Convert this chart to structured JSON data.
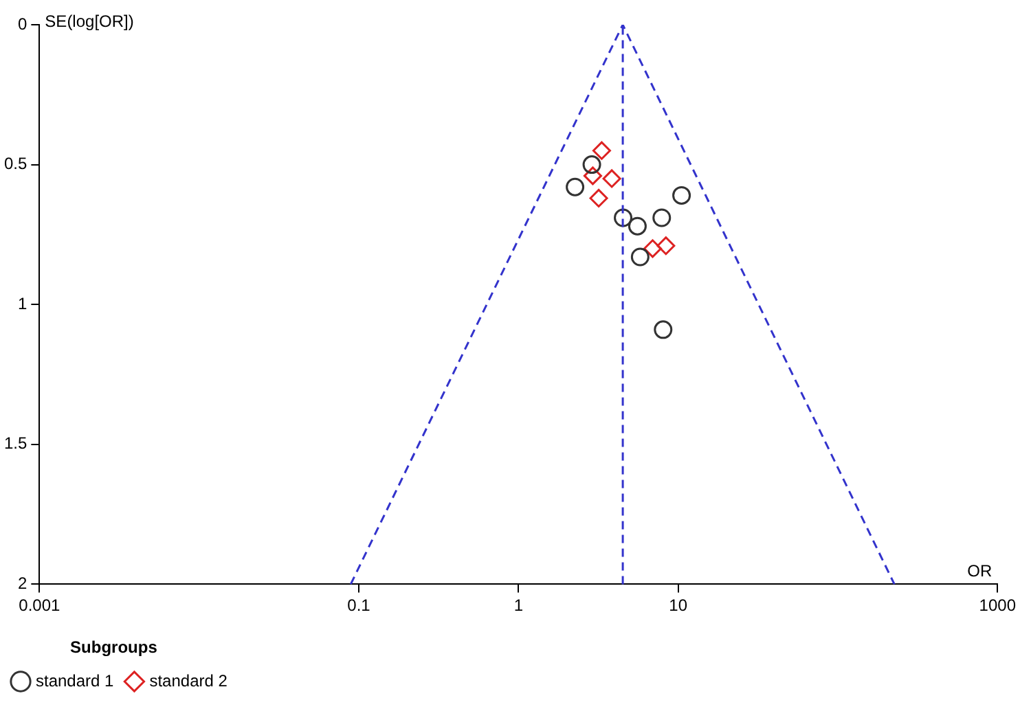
{
  "chart_data": {
    "type": "scatter",
    "xlabel": "OR",
    "ylabel": "SE(log[OR])",
    "legend_title": "Subgroups",
    "log": "x",
    "grid": false,
    "legend": "bottom",
    "xlim": [
      0.001,
      1000
    ],
    "xticks": [
      0.001,
      0.1,
      1,
      10,
      1000
    ],
    "ylim": [
      2,
      0
    ],
    "yticks": [
      0,
      0.5,
      1,
      1.5,
      2
    ],
    "series": [
      {
        "name": "standard 1",
        "color": "#333333",
        "marker": "circle",
        "x": [
          2.88,
          2.26,
          10.5,
          4.52,
          7.89,
          5.56,
          5.78,
          8.05
        ],
        "values": [
          0.5,
          0.58,
          0.61,
          0.69,
          0.69,
          0.72,
          0.83,
          1.09
        ]
      },
      {
        "name": "standard 2",
        "color": "#dd2222",
        "marker": "diamond",
        "x": [
          3.32,
          2.92,
          3.84,
          3.18,
          6.92,
          8.38
        ],
        "values": [
          0.45,
          0.54,
          0.55,
          0.62,
          0.8,
          0.79
        ]
      },
      {
        "type": "line",
        "color": "#3333cc",
        "line_style": "dashed",
        "marker": "none",
        "x": [
          0.089,
          4.5,
          226
        ],
        "values": [
          2,
          0,
          2
        ]
      }
    ],
    "ref_lines": [
      {
        "axis": "x",
        "value": 4.5,
        "color": "#3333cc",
        "line_style": "dashed"
      }
    ]
  }
}
